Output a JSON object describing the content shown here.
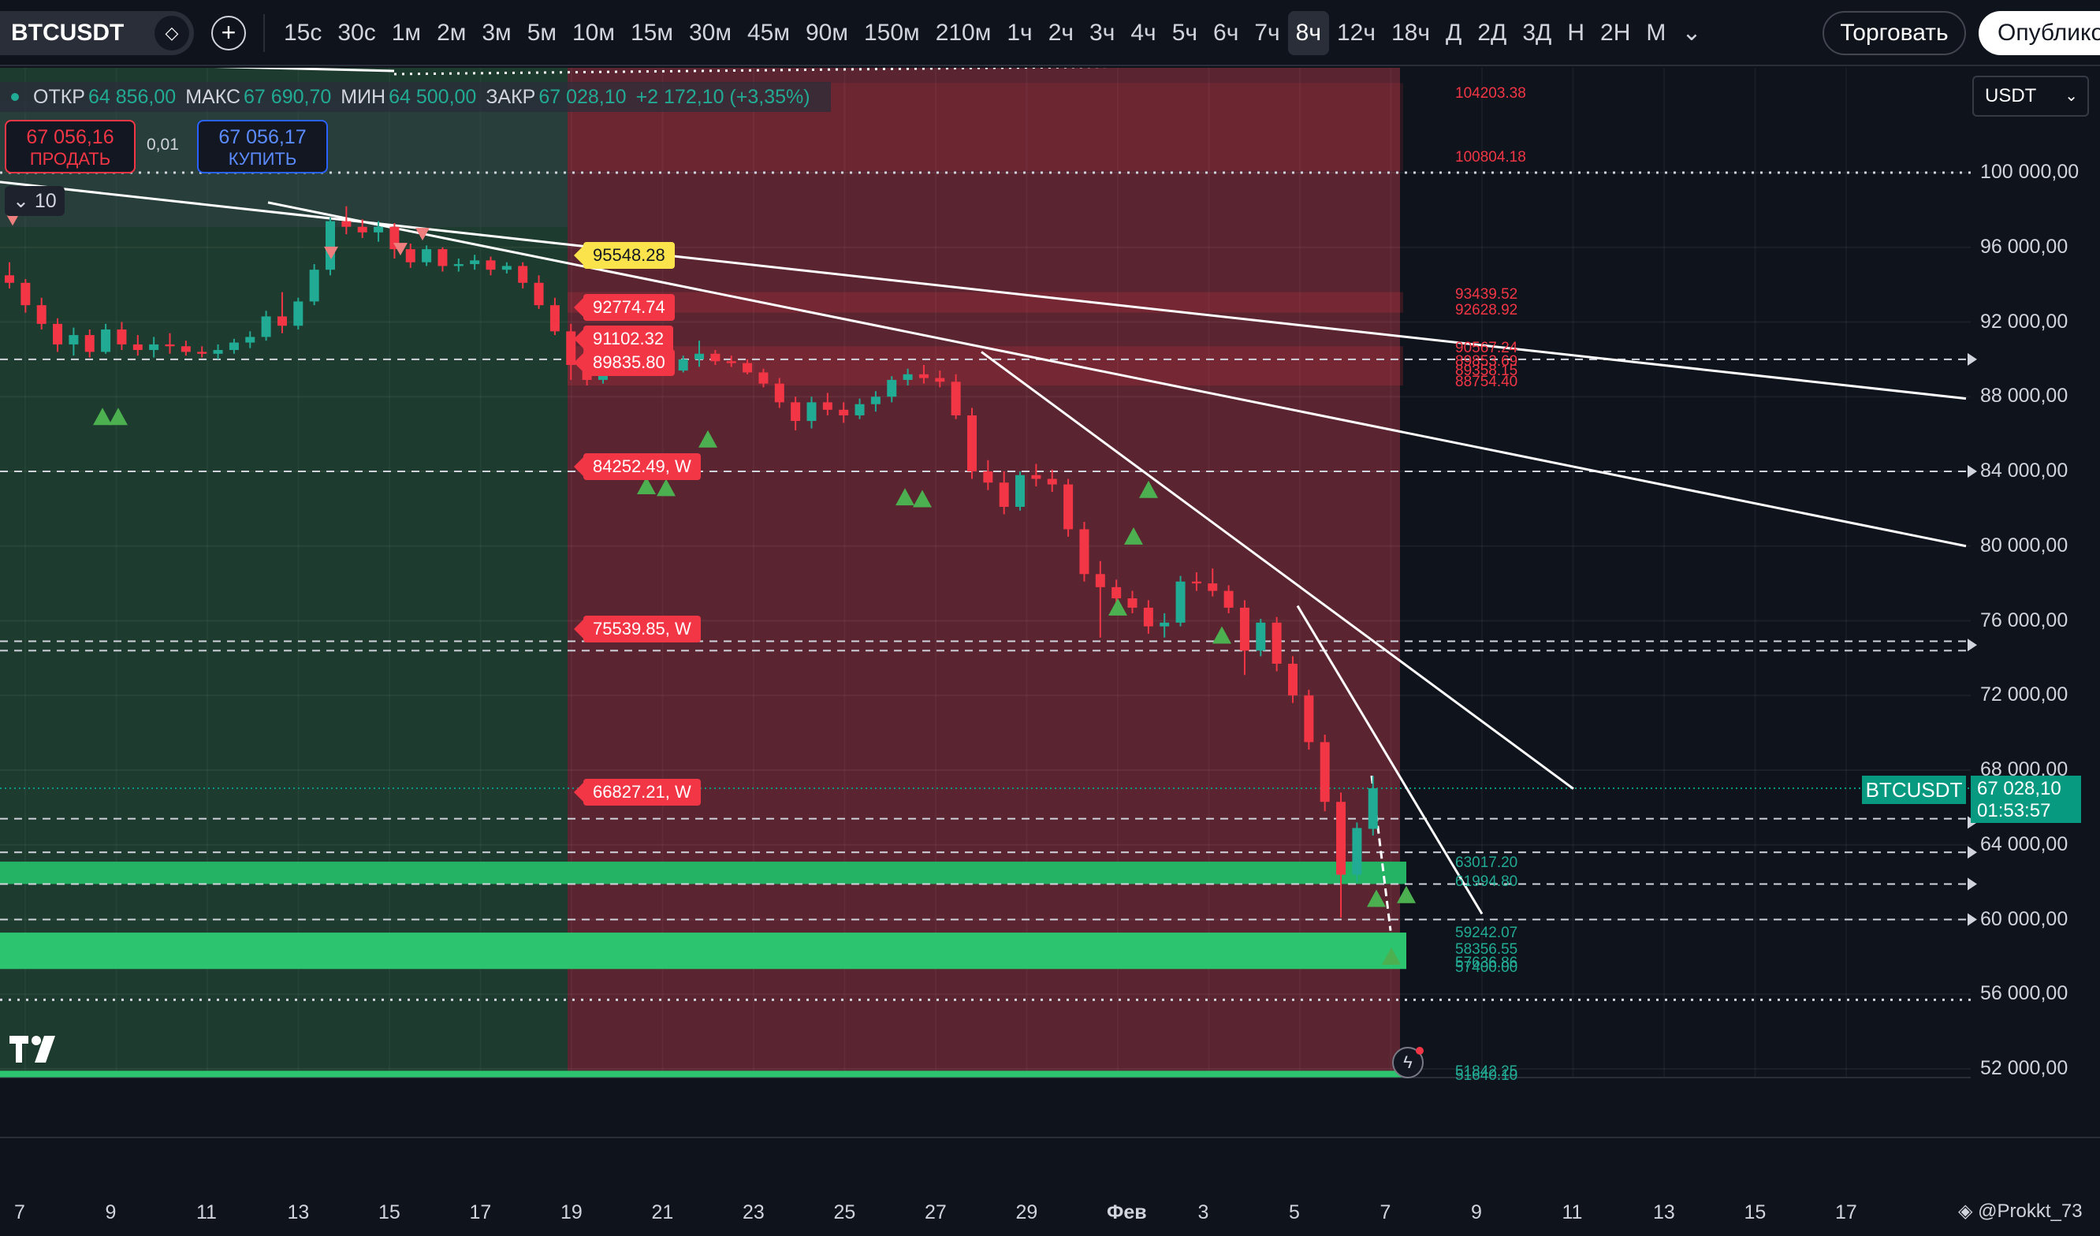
{
  "toolbar": {
    "symbol": "BTCUSDT",
    "timeframes": [
      "15с",
      "30с",
      "1м",
      "2м",
      "3м",
      "5м",
      "10м",
      "15м",
      "30м",
      "45м",
      "90м",
      "150м",
      "210м",
      "1ч",
      "2ч",
      "3ч",
      "4ч",
      "5ч",
      "6ч",
      "7ч",
      "8ч",
      "12ч",
      "18ч",
      "Д",
      "2Д",
      "3Д",
      "Н",
      "2Н",
      "М"
    ],
    "active_timeframe": "8ч",
    "trade_label": "Торговать",
    "publish_label": "Опубликовать"
  },
  "legend": {
    "open_label": "ОТКР",
    "open": "64 856,00",
    "high_label": "МАКС",
    "high": "67 690,70",
    "low_label": "МИН",
    "low": "64 500,00",
    "close_label": "ЗАКР",
    "close": "67 028,10",
    "change": "+2 172,10 (+3,35%)",
    "sell_price": "67 056,16",
    "sell_label": "ПРОДАТЬ",
    "spread": "0,01",
    "buy_price": "67 056,17",
    "buy_label": "КУПИТЬ",
    "indicator_count": "10"
  },
  "currency_select": "USDT",
  "price_axis": [
    "100 000,00",
    "96 000,00",
    "92 000,00",
    "88 000,00",
    "84 000,00",
    "80 000,00",
    "76 000,00",
    "72 000,00",
    "68 000,00",
    "64 000,00",
    "60 000,00",
    "56 000,00",
    "52 000,00"
  ],
  "current_price": {
    "symbol_tag": "BTCUSDT",
    "price": "67 028,10",
    "countdown": "01:53:57"
  },
  "time_axis": [
    "7",
    "9",
    "11",
    "13",
    "15",
    "17",
    "19",
    "21",
    "23",
    "25",
    "27",
    "29",
    "Фев",
    "3",
    "5",
    "7",
    "9",
    "11",
    "13",
    "15",
    "17"
  ],
  "level_labels": {
    "red": [
      "104203.38",
      "100804.18",
      "93439.52",
      "92628.92",
      "90567.24",
      "89853.69",
      "89358.15",
      "88754.40"
    ],
    "green": [
      "63017.20",
      "61994.80",
      "59242.07",
      "58356.55",
      "57636.86",
      "57400.00",
      "51842.25",
      "51640.10"
    ]
  },
  "w_labels": [
    "95548.28",
    "92774.74",
    "91102.32",
    "89835.80",
    "84252.49, W",
    "75539.85, W",
    "66827.21, W"
  ],
  "watermark": "@Prokkt_73",
  "colors": {
    "up": "#22ab94",
    "down": "#f23645",
    "bg": "#0f131c",
    "green_zone": "#1f4a36",
    "red_zone": "#6b2a36"
  },
  "chart_data": {
    "type": "candlestick",
    "timeframe": "8ч",
    "y_range": [
      50000,
      106000
    ],
    "x_labels": [
      "7",
      "9",
      "11",
      "13",
      "15",
      "17",
      "19",
      "21",
      "23",
      "25",
      "27",
      "29",
      "Фев",
      "3",
      "5",
      "7",
      "9",
      "11",
      "13",
      "15",
      "17"
    ],
    "last_close": 67028.1,
    "candles_ohlc": [
      [
        94500,
        95200,
        93800,
        94100
      ],
      [
        94100,
        94300,
        92500,
        92900
      ],
      [
        92900,
        93300,
        91600,
        91900
      ],
      [
        91900,
        92200,
        90400,
        90800
      ],
      [
        90800,
        91700,
        90200,
        91300
      ],
      [
        91300,
        91600,
        90100,
        90400
      ],
      [
        90400,
        91900,
        90300,
        91600
      ],
      [
        91600,
        92000,
        90500,
        90800
      ],
      [
        90800,
        91300,
        90200,
        90500
      ],
      [
        90500,
        91200,
        90100,
        90800
      ],
      [
        90800,
        91400,
        90300,
        90700
      ],
      [
        90700,
        91000,
        90200,
        90400
      ],
      [
        90400,
        90700,
        90100,
        90300
      ],
      [
        90300,
        90800,
        90000,
        90500
      ],
      [
        90500,
        91100,
        90300,
        90900
      ],
      [
        90900,
        91500,
        90600,
        91200
      ],
      [
        91200,
        92600,
        91000,
        92300
      ],
      [
        92300,
        93600,
        91400,
        91800
      ],
      [
        91800,
        93300,
        91600,
        93100
      ],
      [
        93100,
        95100,
        92900,
        94800
      ],
      [
        94800,
        97600,
        94500,
        97400
      ],
      [
        97400,
        98200,
        96700,
        97100
      ],
      [
        97100,
        97500,
        96500,
        96800
      ],
      [
        96800,
        97400,
        96300,
        97100
      ],
      [
        97100,
        97300,
        95400,
        95900
      ],
      [
        95900,
        96200,
        94900,
        95200
      ],
      [
        95200,
        96100,
        95000,
        95900
      ],
      [
        95900,
        96000,
        94700,
        95000
      ],
      [
        95000,
        95400,
        94700,
        95100
      ],
      [
        95100,
        95600,
        94800,
        95300
      ],
      [
        95300,
        95500,
        94500,
        94800
      ],
      [
        94800,
        95200,
        94600,
        95000
      ],
      [
        95000,
        95200,
        93800,
        94100
      ],
      [
        94100,
        94500,
        92700,
        92900
      ],
      [
        92900,
        93300,
        91300,
        91500
      ],
      [
        91500,
        91900,
        88900,
        89700
      ],
      [
        89700,
        90700,
        88600,
        88900
      ],
      [
        88900,
        90000,
        88700,
        89800
      ],
      [
        89800,
        90500,
        89300,
        90100
      ],
      [
        90100,
        90500,
        89400,
        89600
      ],
      [
        89600,
        90100,
        89300,
        89800
      ],
      [
        89800,
        90300,
        89200,
        89400
      ],
      [
        89400,
        90200,
        89300,
        90000
      ],
      [
        90000,
        91000,
        89600,
        90300
      ],
      [
        90300,
        90500,
        89700,
        89900
      ],
      [
        89900,
        90200,
        89600,
        89800
      ],
      [
        89800,
        90000,
        89200,
        89300
      ],
      [
        89300,
        89500,
        88500,
        88700
      ],
      [
        88700,
        89000,
        87400,
        87700
      ],
      [
        87700,
        88000,
        86200,
        86700
      ],
      [
        86700,
        88000,
        86300,
        87700
      ],
      [
        87700,
        88200,
        87000,
        87300
      ],
      [
        87300,
        87700,
        86600,
        87000
      ],
      [
        87000,
        87900,
        86800,
        87600
      ],
      [
        87600,
        88300,
        87200,
        88000
      ],
      [
        88000,
        89100,
        87700,
        88900
      ],
      [
        88900,
        89500,
        88600,
        89200
      ],
      [
        89200,
        89700,
        88700,
        89000
      ],
      [
        89000,
        89400,
        88500,
        88800
      ],
      [
        88800,
        89200,
        86800,
        87000
      ],
      [
        87000,
        87400,
        83600,
        84000
      ],
      [
        84000,
        84600,
        83000,
        83400
      ],
      [
        83400,
        84000,
        81700,
        82100
      ],
      [
        82100,
        84000,
        81900,
        83800
      ],
      [
        83800,
        84400,
        83200,
        83600
      ],
      [
        83600,
        84100,
        82900,
        83300
      ],
      [
        83300,
        83600,
        80500,
        80900
      ],
      [
        80900,
        81300,
        78100,
        78500
      ],
      [
        78500,
        79200,
        75100,
        77800
      ],
      [
        77800,
        78200,
        76900,
        77200
      ],
      [
        77200,
        77600,
        76400,
        76700
      ],
      [
        76700,
        77100,
        75300,
        75700
      ],
      [
        75700,
        76400,
        75100,
        75900
      ],
      [
        75900,
        78400,
        75700,
        78100
      ],
      [
        78100,
        78600,
        77600,
        78000
      ],
      [
        78000,
        78800,
        77300,
        77600
      ],
      [
        77600,
        77900,
        76400,
        76700
      ],
      [
        76700,
        77100,
        73100,
        74400
      ],
      [
        74400,
        76100,
        74100,
        75900
      ],
      [
        75900,
        76200,
        73300,
        73700
      ],
      [
        73700,
        74100,
        71600,
        72000
      ],
      [
        72000,
        72300,
        69100,
        69500
      ],
      [
        69500,
        69900,
        65800,
        66300
      ],
      [
        66300,
        66800,
        60100,
        62400
      ],
      [
        62400,
        65200,
        62000,
        64900
      ],
      [
        64856,
        67690.7,
        64500,
        67028.1
      ]
    ]
  }
}
